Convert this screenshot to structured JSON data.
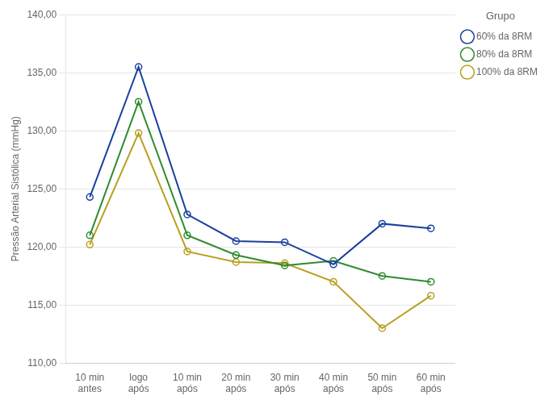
{
  "chart_data": {
    "type": "line",
    "categories": [
      "10 min\nantes",
      "logo\napós",
      "10 min\napós",
      "20 min\napós",
      "30 min\napós",
      "40 min\napós",
      "50 min\napós",
      "60 min\napós"
    ],
    "series": [
      {
        "name": "60% da 8RM",
        "color": "#1a3fa0",
        "marker": "circle",
        "values": [
          124.3,
          135.5,
          122.8,
          120.5,
          120.4,
          118.5,
          122.0,
          121.6
        ]
      },
      {
        "name": "80% da 8RM",
        "color": "#2e8b2e",
        "marker": "circle",
        "values": [
          121.0,
          132.5,
          121.0,
          119.3,
          118.4,
          118.8,
          117.5,
          117.0
        ]
      },
      {
        "name": "100% da 8RM",
        "color": "#b8a020",
        "marker": "circle",
        "values": [
          120.2,
          129.8,
          119.6,
          118.7,
          118.6,
          117.0,
          113.0,
          115.8
        ]
      }
    ],
    "y_label": "Pressão Arterial Sistólica (mmHg)",
    "legend_title": "Grupo",
    "legend": "right",
    "ylim": [
      110.0,
      140.0
    ],
    "yticks": [
      {
        "value": 110.0,
        "label": "110,00"
      },
      {
        "value": 115.0,
        "label": "115,00"
      },
      {
        "value": 120.0,
        "label": "120,00"
      },
      {
        "value": 125.0,
        "label": "125,00"
      },
      {
        "value": 130.0,
        "label": "130,00"
      },
      {
        "value": 135.0,
        "label": "135,00"
      },
      {
        "value": 140.0,
        "label": "140,00"
      }
    ],
    "grid": "y"
  }
}
